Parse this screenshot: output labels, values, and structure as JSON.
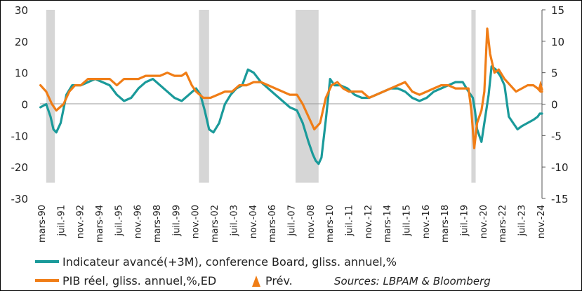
{
  "chart_data": {
    "type": "line",
    "title": "",
    "colors": {
      "teal": "#1a9a9a",
      "orange": "#f07d16",
      "recession": "#d6d6d6"
    },
    "left_axis": {
      "ylim": [
        -30,
        30
      ],
      "ticks": [
        "30",
        "20",
        "10",
        "0",
        "-10",
        "-20",
        "-30"
      ]
    },
    "right_axis": {
      "ylim": [
        -15,
        15
      ],
      "ticks": [
        "15",
        "10",
        "5",
        "0",
        "-5",
        "-10",
        "-15"
      ]
    },
    "x_ticks": [
      "mars-90",
      "juil.-91",
      "nov.-92",
      "mars-94",
      "juil.-95",
      "nov.-96",
      "mars-98",
      "juil.-99",
      "nov.-00",
      "mars-02",
      "juil.-03",
      "nov.-04",
      "mars-06",
      "juil.-07",
      "nov.-08",
      "mars-10",
      "juil.-11",
      "nov.-12",
      "mars-14",
      "juil.-15",
      "nov.-16",
      "mars-18",
      "juil.-19",
      "nov.-20",
      "mars-22",
      "juil.-23",
      "nov.-24"
    ],
    "recessions": [
      [
        1990.6,
        1991.2
      ],
      [
        2001.2,
        2001.9
      ],
      [
        2007.9,
        2009.5
      ],
      [
        2020.1,
        2020.4
      ]
    ],
    "series": [
      {
        "name": "Indicateur avancé(+3M), conference Board, gliss. annuel,%",
        "axis": "left",
        "color": "#1a9a9a",
        "x": [
          1990.2,
          1990.6,
          1990.9,
          1991.1,
          1991.3,
          1991.6,
          1992.0,
          1992.4,
          1993.0,
          1993.5,
          1994.0,
          1994.5,
          1995.0,
          1995.5,
          1996.0,
          1996.5,
          1997.0,
          1997.5,
          1998.0,
          1998.5,
          1999.0,
          1999.5,
          2000.0,
          2000.5,
          2001.0,
          2001.3,
          2001.6,
          2001.9,
          2002.2,
          2002.6,
          2003.0,
          2003.4,
          2003.8,
          2004.2,
          2004.6,
          2005.0,
          2005.5,
          2006.0,
          2006.5,
          2007.0,
          2007.5,
          2008.0,
          2008.4,
          2008.8,
          2009.1,
          2009.3,
          2009.5,
          2009.7,
          2010.0,
          2010.3,
          2010.6,
          2011.0,
          2011.5,
          2012.0,
          2012.5,
          2013.0,
          2013.5,
          2014.0,
          2014.5,
          2015.0,
          2015.5,
          2016.0,
          2016.5,
          2017.0,
          2017.5,
          2018.0,
          2018.5,
          2019.0,
          2019.5,
          2019.9,
          2020.2,
          2020.35,
          2020.5,
          2020.8,
          2021.0,
          2021.3,
          2021.5,
          2021.8,
          2022.1,
          2022.4,
          2022.7,
          2023.0,
          2023.3,
          2023.6,
          2024.0,
          2024.4,
          2024.7,
          2024.85,
          2025.0
        ],
        "y": [
          -1,
          0,
          -4,
          -8,
          -9,
          -6,
          3,
          6,
          6,
          7,
          8,
          7,
          6,
          3,
          1,
          2,
          5,
          7,
          8,
          6,
          4,
          2,
          1,
          3,
          5,
          3,
          -2,
          -8,
          -9,
          -6,
          0,
          3,
          5,
          6,
          11,
          10,
          7,
          5,
          3,
          1,
          -1,
          -2,
          -6,
          -12,
          -16,
          -18,
          -19,
          -17,
          -5,
          8,
          6,
          6,
          5,
          3,
          2,
          2,
          3,
          4,
          5,
          5,
          4,
          2,
          1,
          2,
          4,
          5,
          6,
          7,
          7,
          4,
          2,
          -2,
          -8,
          -12,
          -6,
          3,
          12,
          11,
          9,
          6,
          -4,
          -6,
          -8,
          -7,
          -6,
          -5,
          -4,
          -3,
          -3
        ]
      },
      {
        "name": "PIB réel, gliss. annuel,%,ED",
        "axis": "right",
        "color": "#f07d16",
        "x": [
          1990.2,
          1990.6,
          1991.0,
          1991.3,
          1991.8,
          1992.2,
          1992.6,
          1993.0,
          1993.5,
          1994.0,
          1994.5,
          1995.0,
          1995.5,
          1996.0,
          1996.5,
          1997.0,
          1997.5,
          1998.0,
          1998.5,
          1999.0,
          1999.5,
          2000.0,
          2000.3,
          2000.7,
          2001.0,
          2001.5,
          2002.0,
          2002.5,
          2003.0,
          2003.5,
          2004.0,
          2004.5,
          2005.0,
          2005.5,
          2006.0,
          2006.5,
          2007.0,
          2007.5,
          2008.0,
          2008.4,
          2008.8,
          2009.2,
          2009.6,
          2010.0,
          2010.4,
          2010.8,
          2011.2,
          2011.6,
          2012.0,
          2012.5,
          2013.0,
          2013.5,
          2014.0,
          2014.5,
          2015.0,
          2015.5,
          2016.0,
          2016.5,
          2017.0,
          2017.5,
          2018.0,
          2018.5,
          2019.0,
          2019.5,
          2019.9,
          2020.1,
          2020.3,
          2020.5,
          2020.8,
          2021.0,
          2021.2,
          2021.4,
          2021.7,
          2022.0,
          2022.4,
          2022.8,
          2023.2,
          2023.6,
          2024.0,
          2024.4,
          2024.7,
          2024.9,
          2025.0
        ],
        "y": [
          3,
          2,
          0,
          -1,
          0,
          2,
          3,
          3,
          4,
          4,
          4,
          4,
          3,
          4,
          4,
          4,
          4.5,
          4.5,
          4.5,
          5,
          4.5,
          4.5,
          5,
          3,
          2,
          1,
          1,
          1.5,
          2,
          2,
          3,
          3,
          3.5,
          3.5,
          3,
          2.5,
          2,
          1.5,
          1.5,
          0,
          -2,
          -4,
          -3,
          1,
          3,
          3.5,
          2.5,
          2,
          2,
          2,
          1,
          1.5,
          2,
          2.5,
          3,
          3.5,
          2,
          1.5,
          2,
          2.5,
          3,
          3,
          2.5,
          2.5,
          2.5,
          -1,
          -7,
          -3,
          -1,
          2,
          12,
          8,
          5,
          5.5,
          4,
          3,
          2,
          2.5,
          3,
          3,
          2.5,
          2,
          2
        ]
      }
    ],
    "forecast_marker": {
      "label": "Prév.",
      "x": 2024.9,
      "y": 3,
      "axis": "right",
      "color": "#f07d16"
    }
  },
  "legend": {
    "teal_label": "Indicateur avancé(+3M), conference Board, gliss. annuel,%",
    "orange_label": "PIB réel, gliss. annuel,%,ED",
    "forecast_label": "Prév.",
    "source": "Sources: LBPAM & Bloomberg"
  }
}
